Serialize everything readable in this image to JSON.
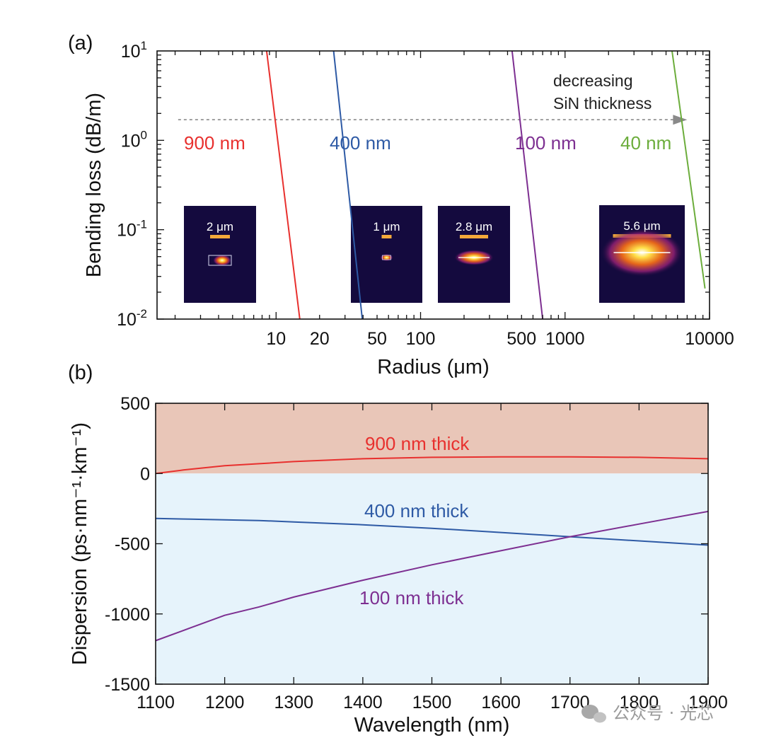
{
  "chart_data": [
    {
      "panel": "(a)",
      "type": "line",
      "xscale": "log",
      "yscale": "log",
      "xlabel": "Radius (μm)",
      "ylabel": "Bending loss (dB/m)",
      "xlim": [
        1.5,
        10000
      ],
      "ylim": [
        0.01,
        10
      ],
      "xticks": [
        10,
        20,
        50,
        100,
        500,
        1000,
        10000
      ],
      "xtick_labels": [
        "10",
        "20",
        "50",
        "100",
        "500",
        "1000",
        "10000"
      ],
      "yticks": [
        {
          "value": 10,
          "base": "10",
          "exp": "1"
        },
        {
          "value": 1,
          "base": "10",
          "exp": "0"
        },
        {
          "value": 0.1,
          "base": "10",
          "exp": "-1"
        },
        {
          "value": 0.01,
          "base": "10",
          "exp": "-2"
        }
      ],
      "series": [
        {
          "name": "900 nm",
          "color": "#e8302e",
          "points": [
            [
              8.6,
              10
            ],
            [
              14.6,
              0.01
            ]
          ]
        },
        {
          "name": "400 nm",
          "color": "#2e5aa5",
          "points": [
            [
              25,
              10
            ],
            [
              39.5,
              0.01
            ]
          ]
        },
        {
          "name": "100 nm",
          "color": "#7d2f91",
          "points": [
            [
              430,
              10
            ],
            [
              700,
              0.01
            ]
          ]
        },
        {
          "name": "40 nm",
          "color": "#6cad3c",
          "points": [
            [
              5500,
              10
            ],
            [
              9300,
              0.022
            ]
          ]
        }
      ],
      "annotation": {
        "line1": "decreasing",
        "line2": "SiN thickness",
        "arrow_y": 1.7,
        "arrow_x": [
          2.1,
          7000
        ]
      },
      "insets": [
        {
          "label": "2 μm",
          "shape": "rect-mode"
        },
        {
          "label": "1 μm",
          "shape": "small-mode"
        },
        {
          "label": "2.8 μm",
          "shape": "thin-mode"
        },
        {
          "label": "5.6 μm",
          "shape": "wide-mode"
        }
      ]
    },
    {
      "panel": "(b)",
      "type": "line",
      "xlabel": "Wavelength (nm)",
      "ylabel": "Dispersion (ps·nm⁻¹·km⁻¹)",
      "xlim": [
        1100,
        1900
      ],
      "ylim": [
        -1500,
        500
      ],
      "xticks": [
        1100,
        1200,
        1300,
        1400,
        1500,
        1600,
        1700,
        1800,
        1900
      ],
      "yticks": [
        500,
        0,
        -500,
        -1000,
        -1500
      ],
      "regions": {
        "positive_color": "#e9c6b8",
        "negative_color": "#e6f3fb"
      },
      "series": [
        {
          "name": "900 nm thick",
          "color": "#e8302e",
          "x": [
            1100,
            1140,
            1160,
            1200,
            1250,
            1300,
            1400,
            1500,
            1600,
            1700,
            1800,
            1900
          ],
          "y": [
            0,
            25,
            35,
            55,
            70,
            85,
            105,
            115,
            118,
            118,
            115,
            105
          ]
        },
        {
          "name": "400 nm thick",
          "color": "#2e5aa5",
          "x": [
            1100,
            1150,
            1200,
            1250,
            1300,
            1400,
            1500,
            1600,
            1700,
            1800,
            1900
          ],
          "y": [
            -320,
            -325,
            -330,
            -335,
            -345,
            -365,
            -390,
            -420,
            -450,
            -480,
            -510
          ]
        },
        {
          "name": "100 nm thick",
          "color": "#7d2f91",
          "x": [
            1100,
            1150,
            1200,
            1250,
            1300,
            1400,
            1500,
            1600,
            1700,
            1800,
            1900
          ],
          "y": [
            -1190,
            -1100,
            -1010,
            -950,
            -880,
            -760,
            -650,
            -550,
            -450,
            -360,
            -270
          ]
        }
      ]
    }
  ],
  "watermark": "公众号 · 光芯"
}
